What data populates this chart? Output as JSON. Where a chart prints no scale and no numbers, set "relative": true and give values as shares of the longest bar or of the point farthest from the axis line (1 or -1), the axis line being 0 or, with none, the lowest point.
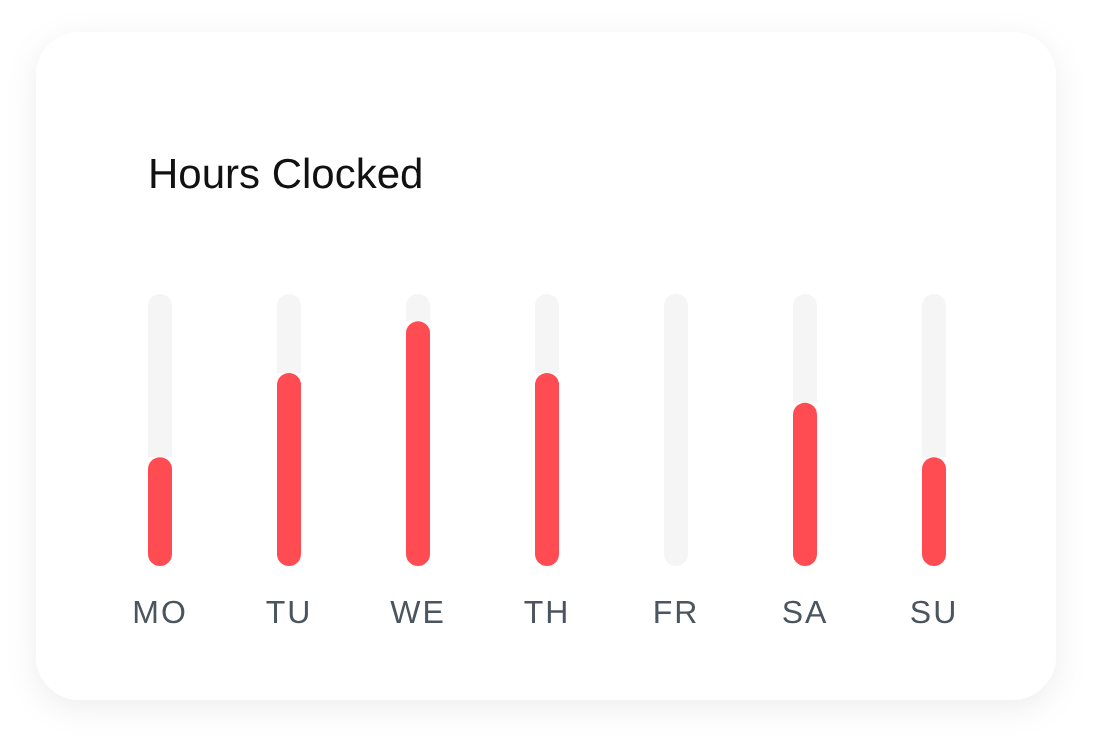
{
  "chart_data": {
    "type": "bar",
    "title": "Hours Clocked",
    "relative": true,
    "categories": [
      "MO",
      "TU",
      "WE",
      "TH",
      "FR",
      "SA",
      "SU"
    ],
    "stacked": true,
    "series": [
      {
        "color": "#ff4b52",
        "values": [
          0.4,
          0.71,
          0.9,
          0.71,
          0,
          0.6,
          0.4
        ]
      },
      {
        "color": "#f5f5f5",
        "values": [
          0.6,
          0.29,
          0.1,
          0.29,
          1,
          0.4,
          0.6
        ]
      }
    ]
  }
}
